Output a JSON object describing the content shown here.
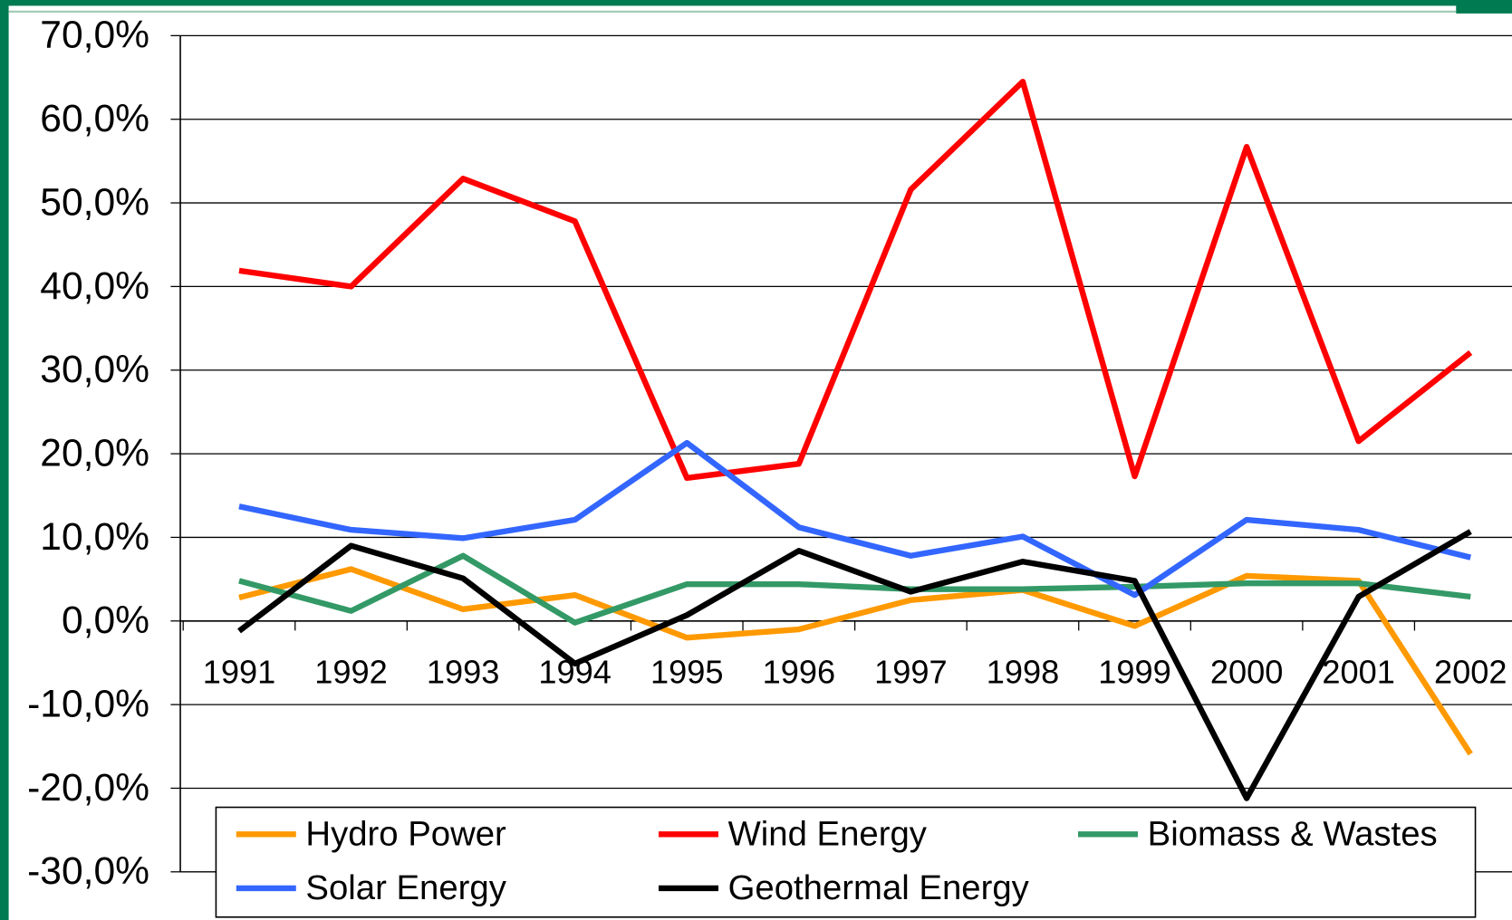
{
  "chart_data": {
    "type": "line",
    "categories": [
      "1991",
      "1992",
      "1993",
      "1994",
      "1995",
      "1996",
      "1997",
      "1998",
      "1999",
      "2000",
      "2001",
      "2002"
    ],
    "series": [
      {
        "name": "Hydro Power",
        "color": "#ff9900",
        "values": [
          2.8,
          6.2,
          1.4,
          3.1,
          -2.0,
          -1.0,
          2.5,
          3.7,
          -0.6,
          5.4,
          4.8,
          -15.9
        ]
      },
      {
        "name": "Wind Energy",
        "color": "#ff0000",
        "values": [
          41.9,
          40.0,
          52.9,
          47.8,
          17.1,
          18.8,
          51.6,
          64.5,
          17.3,
          56.7,
          21.5,
          32.1
        ]
      },
      {
        "name": "Biomass & Wastes",
        "color": "#339966",
        "values": [
          4.8,
          1.2,
          7.8,
          -0.2,
          4.4,
          4.4,
          3.8,
          3.8,
          4.1,
          4.5,
          4.5,
          2.9
        ]
      },
      {
        "name": "Solar Energy",
        "color": "#3366ff",
        "values": [
          13.7,
          10.9,
          9.9,
          12.1,
          21.3,
          11.2,
          7.8,
          10.1,
          3.1,
          12.1,
          10.9,
          7.6
        ]
      },
      {
        "name": "Geothermal Energy",
        "color": "#000000",
        "values": [
          -1.2,
          9.0,
          5.1,
          -5.1,
          0.7,
          8.4,
          3.5,
          7.1,
          4.8,
          -21.2,
          2.9,
          10.7
        ]
      }
    ],
    "ylim": [
      -30,
      70
    ],
    "yticks": [
      {
        "value": -30,
        "label": "-30,0%"
      },
      {
        "value": -20,
        "label": "-20,0%"
      },
      {
        "value": -10,
        "label": "-10,0%"
      },
      {
        "value": 0,
        "label": "0,0%"
      },
      {
        "value": 10,
        "label": "10,0%"
      },
      {
        "value": 20,
        "label": "20,0%"
      },
      {
        "value": 30,
        "label": "30,0%"
      },
      {
        "value": 40,
        "label": "40,0%"
      },
      {
        "value": 50,
        "label": "50,0%"
      },
      {
        "value": 60,
        "label": "60,0%"
      },
      {
        "value": 70,
        "label": "70,0%"
      }
    ],
    "grid": true,
    "legend": "bottom"
  }
}
